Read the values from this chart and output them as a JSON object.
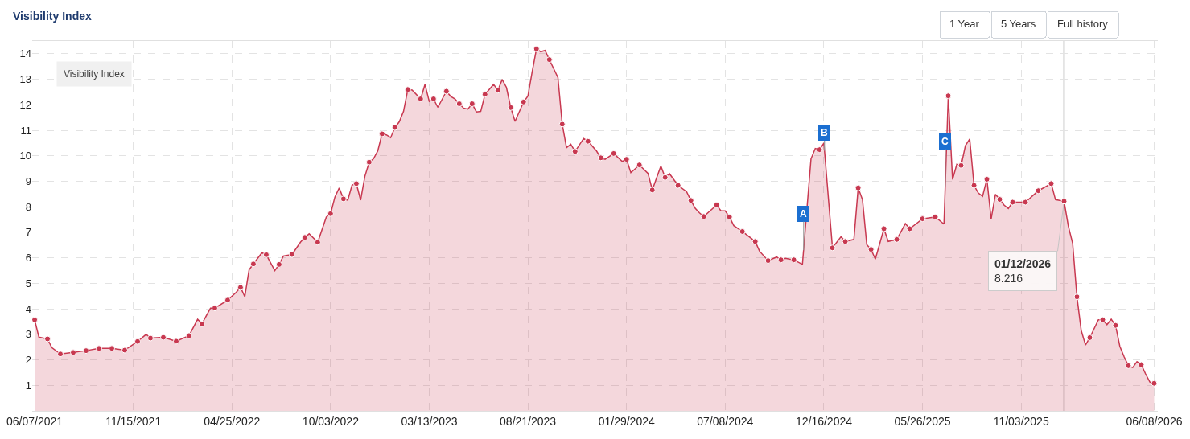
{
  "chart_data": {
    "type": "area",
    "title": "Visibility Index",
    "legend_title": "Visibility Index",
    "grid": true,
    "xlim": [
      "2021-06-03",
      "2026-06-14"
    ],
    "xticks": [
      {
        "value": "2021-06-07",
        "label": "06/07/2021"
      },
      {
        "value": "2021-11-15",
        "label": "11/15/2021"
      },
      {
        "value": "2022-04-25",
        "label": "04/25/2022"
      },
      {
        "value": "2022-10-03",
        "label": "10/03/2022"
      },
      {
        "value": "2023-03-13",
        "label": "03/13/2023"
      },
      {
        "value": "2023-08-21",
        "label": "08/21/2023"
      },
      {
        "value": "2024-01-29",
        "label": "01/29/2024"
      },
      {
        "value": "2024-07-08",
        "label": "07/08/2024"
      },
      {
        "value": "2024-12-16",
        "label": "12/16/2024"
      },
      {
        "value": "2025-05-26",
        "label": "05/26/2025"
      },
      {
        "value": "2025-11-03",
        "label": "11/03/2025"
      },
      {
        "value": "2026-06-08",
        "label": "06/08/2026"
      }
    ],
    "ylim": [
      0,
      14.5
    ],
    "yticks": [
      1,
      2,
      3,
      4,
      5,
      6,
      7,
      8,
      9,
      10,
      11,
      12,
      13,
      14
    ],
    "ref_lines": [
      {
        "axis": "x",
        "value": "2026-01-12",
        "color": "#9e9e9e"
      }
    ],
    "annotations": [
      {
        "text": "A",
        "x": "2024-11-13",
        "y": 6.3
      },
      {
        "text": "B",
        "x": "2024-12-17",
        "y": 10.2
      },
      {
        "text": "C",
        "x": "2025-07-02",
        "y": 8.8
      },
      {
        "text": "01/12/2026\n8.216",
        "x": "2026-01-12",
        "y": 8.216
      },
      "1 Year",
      "5 Years",
      "Full history"
    ],
    "series": [
      {
        "color": "#c83850",
        "x": [
          "2021-06-07",
          "2021-06-14",
          "2021-06-28",
          "2021-07-05",
          "2021-07-19",
          "2021-08-09",
          "2021-08-30",
          "2021-09-20",
          "2021-10-11",
          "2021-11-01",
          "2021-11-22",
          "2021-12-06",
          "2021-12-13",
          "2022-01-03",
          "2022-01-24",
          "2022-02-14",
          "2022-02-28",
          "2022-03-07",
          "2022-03-21",
          "2022-03-28",
          "2022-04-18",
          "2022-05-02",
          "2022-05-09",
          "2022-05-16",
          "2022-05-23",
          "2022-05-30",
          "2022-06-13",
          "2022-06-20",
          "2022-07-04",
          "2022-07-11",
          "2022-07-18",
          "2022-08-01",
          "2022-08-15",
          "2022-08-22",
          "2022-08-29",
          "2022-09-12",
          "2022-09-26",
          "2022-10-03",
          "2022-10-10",
          "2022-10-17",
          "2022-10-24",
          "2022-10-31",
          "2022-11-07",
          "2022-11-14",
          "2022-11-21",
          "2022-11-28",
          "2022-12-05",
          "2022-12-12",
          "2022-12-19",
          "2022-12-26",
          "2023-01-02",
          "2023-01-09",
          "2023-01-16",
          "2023-01-23",
          "2023-01-30",
          "2023-02-06",
          "2023-02-13",
          "2023-02-27",
          "2023-03-06",
          "2023-03-13",
          "2023-03-20",
          "2023-03-27",
          "2023-04-10",
          "2023-04-17",
          "2023-04-24",
          "2023-05-01",
          "2023-05-08",
          "2023-05-15",
          "2023-05-22",
          "2023-05-29",
          "2023-06-05",
          "2023-06-12",
          "2023-06-26",
          "2023-07-03",
          "2023-07-10",
          "2023-07-17",
          "2023-07-24",
          "2023-07-31",
          "2023-08-14",
          "2023-08-21",
          "2023-08-28",
          "2023-09-04",
          "2023-09-11",
          "2023-09-18",
          "2023-09-25",
          "2023-10-02",
          "2023-10-09",
          "2023-10-16",
          "2023-10-23",
          "2023-10-30",
          "2023-11-06",
          "2023-11-20",
          "2023-11-27",
          "2023-12-11",
          "2023-12-18",
          "2023-12-25",
          "2024-01-08",
          "2024-01-22",
          "2024-01-29",
          "2024-02-05",
          "2024-02-19",
          "2024-03-04",
          "2024-03-11",
          "2024-03-25",
          "2024-04-01",
          "2024-04-08",
          "2024-04-22",
          "2024-05-06",
          "2024-05-13",
          "2024-05-20",
          "2024-05-27",
          "2024-06-03",
          "2024-06-24",
          "2024-07-01",
          "2024-07-08",
          "2024-07-15",
          "2024-07-22",
          "2024-08-05",
          "2024-08-26",
          "2024-09-02",
          "2024-09-16",
          "2024-09-30",
          "2024-10-07",
          "2024-10-14",
          "2024-10-28",
          "2024-11-11",
          "2024-11-25",
          "2024-12-02",
          "2024-12-09",
          "2024-12-16",
          "2024-12-30",
          "2025-01-13",
          "2025-01-20",
          "2025-02-03",
          "2025-02-10",
          "2025-02-17",
          "2025-02-24",
          "2025-03-03",
          "2025-03-10",
          "2025-03-24",
          "2025-03-31",
          "2025-04-14",
          "2025-04-28",
          "2025-05-05",
          "2025-05-26",
          "2025-06-16",
          "2025-06-30",
          "2025-07-07",
          "2025-07-14",
          "2025-07-21",
          "2025-07-28",
          "2025-08-04",
          "2025-08-11",
          "2025-08-18",
          "2025-08-25",
          "2025-09-01",
          "2025-09-08",
          "2025-09-15",
          "2025-09-22",
          "2025-09-29",
          "2025-10-06",
          "2025-10-13",
          "2025-10-20",
          "2025-11-10",
          "2025-12-01",
          "2025-12-22",
          "2025-12-29",
          "2026-01-12",
          "2026-01-19",
          "2026-01-26",
          "2026-02-02",
          "2026-02-09",
          "2026-02-16",
          "2026-02-23",
          "2026-03-09",
          "2026-03-16",
          "2026-03-23",
          "2026-03-30",
          "2026-04-06",
          "2026-04-13",
          "2026-04-20",
          "2026-04-27",
          "2026-05-04",
          "2026-05-11",
          "2026-05-18",
          "2026-05-25",
          "2026-06-01",
          "2026-06-08"
        ],
        "values": [
          3.57,
          2.89,
          2.82,
          2.48,
          2.23,
          2.29,
          2.36,
          2.45,
          2.45,
          2.38,
          2.72,
          3.0,
          2.85,
          2.88,
          2.73,
          2.95,
          3.59,
          3.41,
          4.03,
          4.03,
          4.34,
          4.65,
          4.84,
          4.48,
          5.53,
          5.76,
          6.2,
          6.12,
          5.5,
          5.74,
          6.07,
          6.13,
          6.62,
          6.8,
          6.94,
          6.61,
          7.6,
          7.73,
          8.38,
          8.74,
          8.31,
          8.26,
          8.85,
          8.91,
          8.26,
          9.2,
          9.75,
          9.88,
          10.19,
          10.86,
          10.82,
          10.71,
          11.11,
          11.33,
          11.74,
          12.6,
          12.58,
          12.23,
          12.8,
          12.13,
          12.23,
          11.9,
          12.53,
          12.33,
          12.23,
          12.04,
          11.87,
          11.83,
          12.04,
          11.72,
          11.74,
          12.41,
          12.8,
          12.57,
          12.99,
          12.68,
          11.89,
          11.35,
          12.11,
          12.34,
          13.3,
          14.19,
          14.08,
          14.13,
          13.77,
          13.42,
          13.07,
          11.24,
          10.32,
          10.45,
          10.17,
          10.68,
          10.57,
          10.19,
          9.92,
          9.86,
          10.09,
          9.78,
          9.86,
          9.34,
          9.64,
          9.31,
          8.66,
          9.6,
          9.15,
          9.3,
          8.84,
          8.59,
          8.25,
          7.94,
          7.76,
          7.62,
          8.07,
          7.84,
          7.84,
          7.6,
          7.26,
          7.03,
          6.64,
          6.26,
          5.89,
          6.03,
          5.92,
          5.98,
          5.92,
          5.74,
          9.88,
          10.29,
          10.24,
          10.5,
          6.39,
          6.83,
          6.64,
          6.72,
          8.74,
          8.28,
          6.52,
          6.33,
          5.95,
          7.14,
          6.64,
          6.72,
          7.34,
          7.14,
          7.53,
          7.6,
          7.32,
          12.35,
          9.07,
          9.67,
          9.62,
          10.4,
          10.66,
          8.84,
          8.54,
          8.41,
          9.08,
          7.52,
          8.49,
          8.29,
          8.07,
          7.93,
          8.18,
          8.18,
          8.63,
          8.91,
          8.28,
          8.216,
          7.24,
          6.57,
          4.47,
          3.15,
          2.58,
          2.87,
          3.57,
          3.57,
          3.38,
          3.59,
          3.35,
          2.53,
          2.12,
          1.77,
          1.7,
          1.93,
          1.81,
          1.45,
          1.13,
          1.08
        ]
      },
      {
        "type": "scatter",
        "marker": "circle",
        "color": "#c83850",
        "x": [
          "2021-06-07",
          "2021-06-28",
          "2021-07-19",
          "2021-08-09",
          "2021-08-30",
          "2021-09-20",
          "2021-10-11",
          "2021-11-01",
          "2021-11-22",
          "2021-12-13",
          "2022-01-03",
          "2022-01-24",
          "2022-02-14",
          "2022-03-07",
          "2022-03-28",
          "2022-04-18",
          "2022-05-09",
          "2022-05-30",
          "2022-06-20",
          "2022-07-11",
          "2022-08-01",
          "2022-08-22",
          "2022-09-12",
          "2022-10-03",
          "2022-10-24",
          "2022-11-14",
          "2022-12-05",
          "2022-12-26",
          "2023-01-16",
          "2023-02-06",
          "2023-02-27",
          "2023-03-20",
          "2023-04-10",
          "2023-05-01",
          "2023-05-22",
          "2023-06-12",
          "2023-07-03",
          "2023-07-24",
          "2023-08-14",
          "2023-09-04",
          "2023-09-25",
          "2023-10-16",
          "2023-11-06",
          "2023-11-27",
          "2023-12-18",
          "2024-01-08",
          "2024-01-29",
          "2024-02-19",
          "2024-03-11",
          "2024-04-01",
          "2024-04-22",
          "2024-05-13",
          "2024-06-03",
          "2024-06-24",
          "2024-07-15",
          "2024-08-05",
          "2024-08-26",
          "2024-09-16",
          "2024-10-07",
          "2024-10-28",
          "2024-12-09",
          "2024-12-30",
          "2025-01-20",
          "2025-02-10",
          "2025-03-03",
          "2025-03-24",
          "2025-04-14",
          "2025-05-05",
          "2025-05-26",
          "2025-06-16",
          "2025-07-07",
          "2025-07-28",
          "2025-08-18",
          "2025-09-08",
          "2025-09-29",
          "2025-10-20",
          "2025-11-10",
          "2025-12-01",
          "2025-12-22",
          "2026-01-12",
          "2026-02-02",
          "2026-02-23",
          "2026-03-16",
          "2026-04-06",
          "2026-04-27",
          "2026-05-18",
          "2026-06-08"
        ],
        "values": [
          3.57,
          2.82,
          2.23,
          2.29,
          2.36,
          2.45,
          2.45,
          2.38,
          2.72,
          2.85,
          2.88,
          2.73,
          2.95,
          3.41,
          4.03,
          4.34,
          4.84,
          5.76,
          6.12,
          5.74,
          6.13,
          6.8,
          6.61,
          7.73,
          8.31,
          8.91,
          9.75,
          10.86,
          11.11,
          12.6,
          12.23,
          12.23,
          12.53,
          12.04,
          12.04,
          12.41,
          12.57,
          11.89,
          12.11,
          14.19,
          13.77,
          11.24,
          10.17,
          10.57,
          9.92,
          10.09,
          9.86,
          9.64,
          8.66,
          9.15,
          8.84,
          8.25,
          7.62,
          8.07,
          7.6,
          7.03,
          6.64,
          5.89,
          5.92,
          5.92,
          10.24,
          6.39,
          6.64,
          8.74,
          6.33,
          7.14,
          6.72,
          7.14,
          7.53,
          7.6,
          12.35,
          9.62,
          8.84,
          9.08,
          8.29,
          8.18,
          8.18,
          8.63,
          8.91,
          8.216,
          4.47,
          2.87,
          3.57,
          3.35,
          1.77,
          1.81,
          1.08
        ]
      }
    ]
  }
}
